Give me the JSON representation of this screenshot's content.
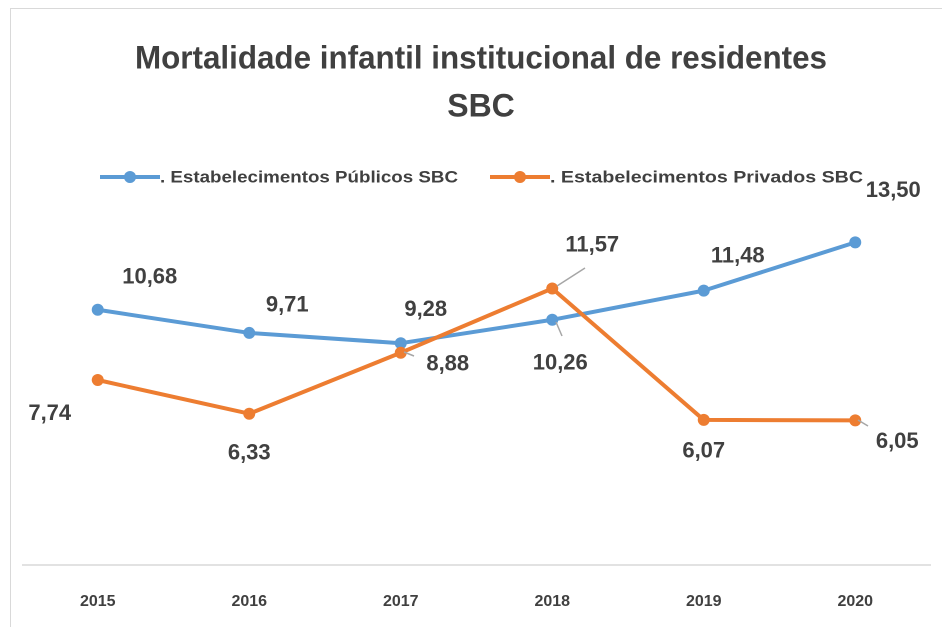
{
  "chart_data": {
    "type": "line",
    "title": [
      "Mortalidade infantil institucional de residentes",
      "SBC"
    ],
    "categories": [
      "2015",
      "2016",
      "2017",
      "2018",
      "2019",
      "2020"
    ],
    "series": [
      {
        "name": ". Estabelecimentos Públicos SBC",
        "color": "#5b9bd5",
        "values": [
          10.68,
          9.71,
          9.28,
          10.26,
          11.48,
          13.5
        ],
        "value_labels": [
          "10,68",
          "9,71",
          "9,28",
          "10,26",
          "11,48",
          "13,50"
        ]
      },
      {
        "name": ". Estabelecimentos Privados SBC",
        "color": "#ed7d31",
        "values": [
          7.74,
          6.33,
          8.88,
          11.57,
          6.07,
          6.05
        ],
        "value_labels": [
          "7,74",
          "6,33",
          "8,88",
          "11,57",
          "6,07",
          "6,05"
        ]
      }
    ],
    "ylim": [
      0,
      20
    ],
    "legend": "top",
    "grid": false
  }
}
